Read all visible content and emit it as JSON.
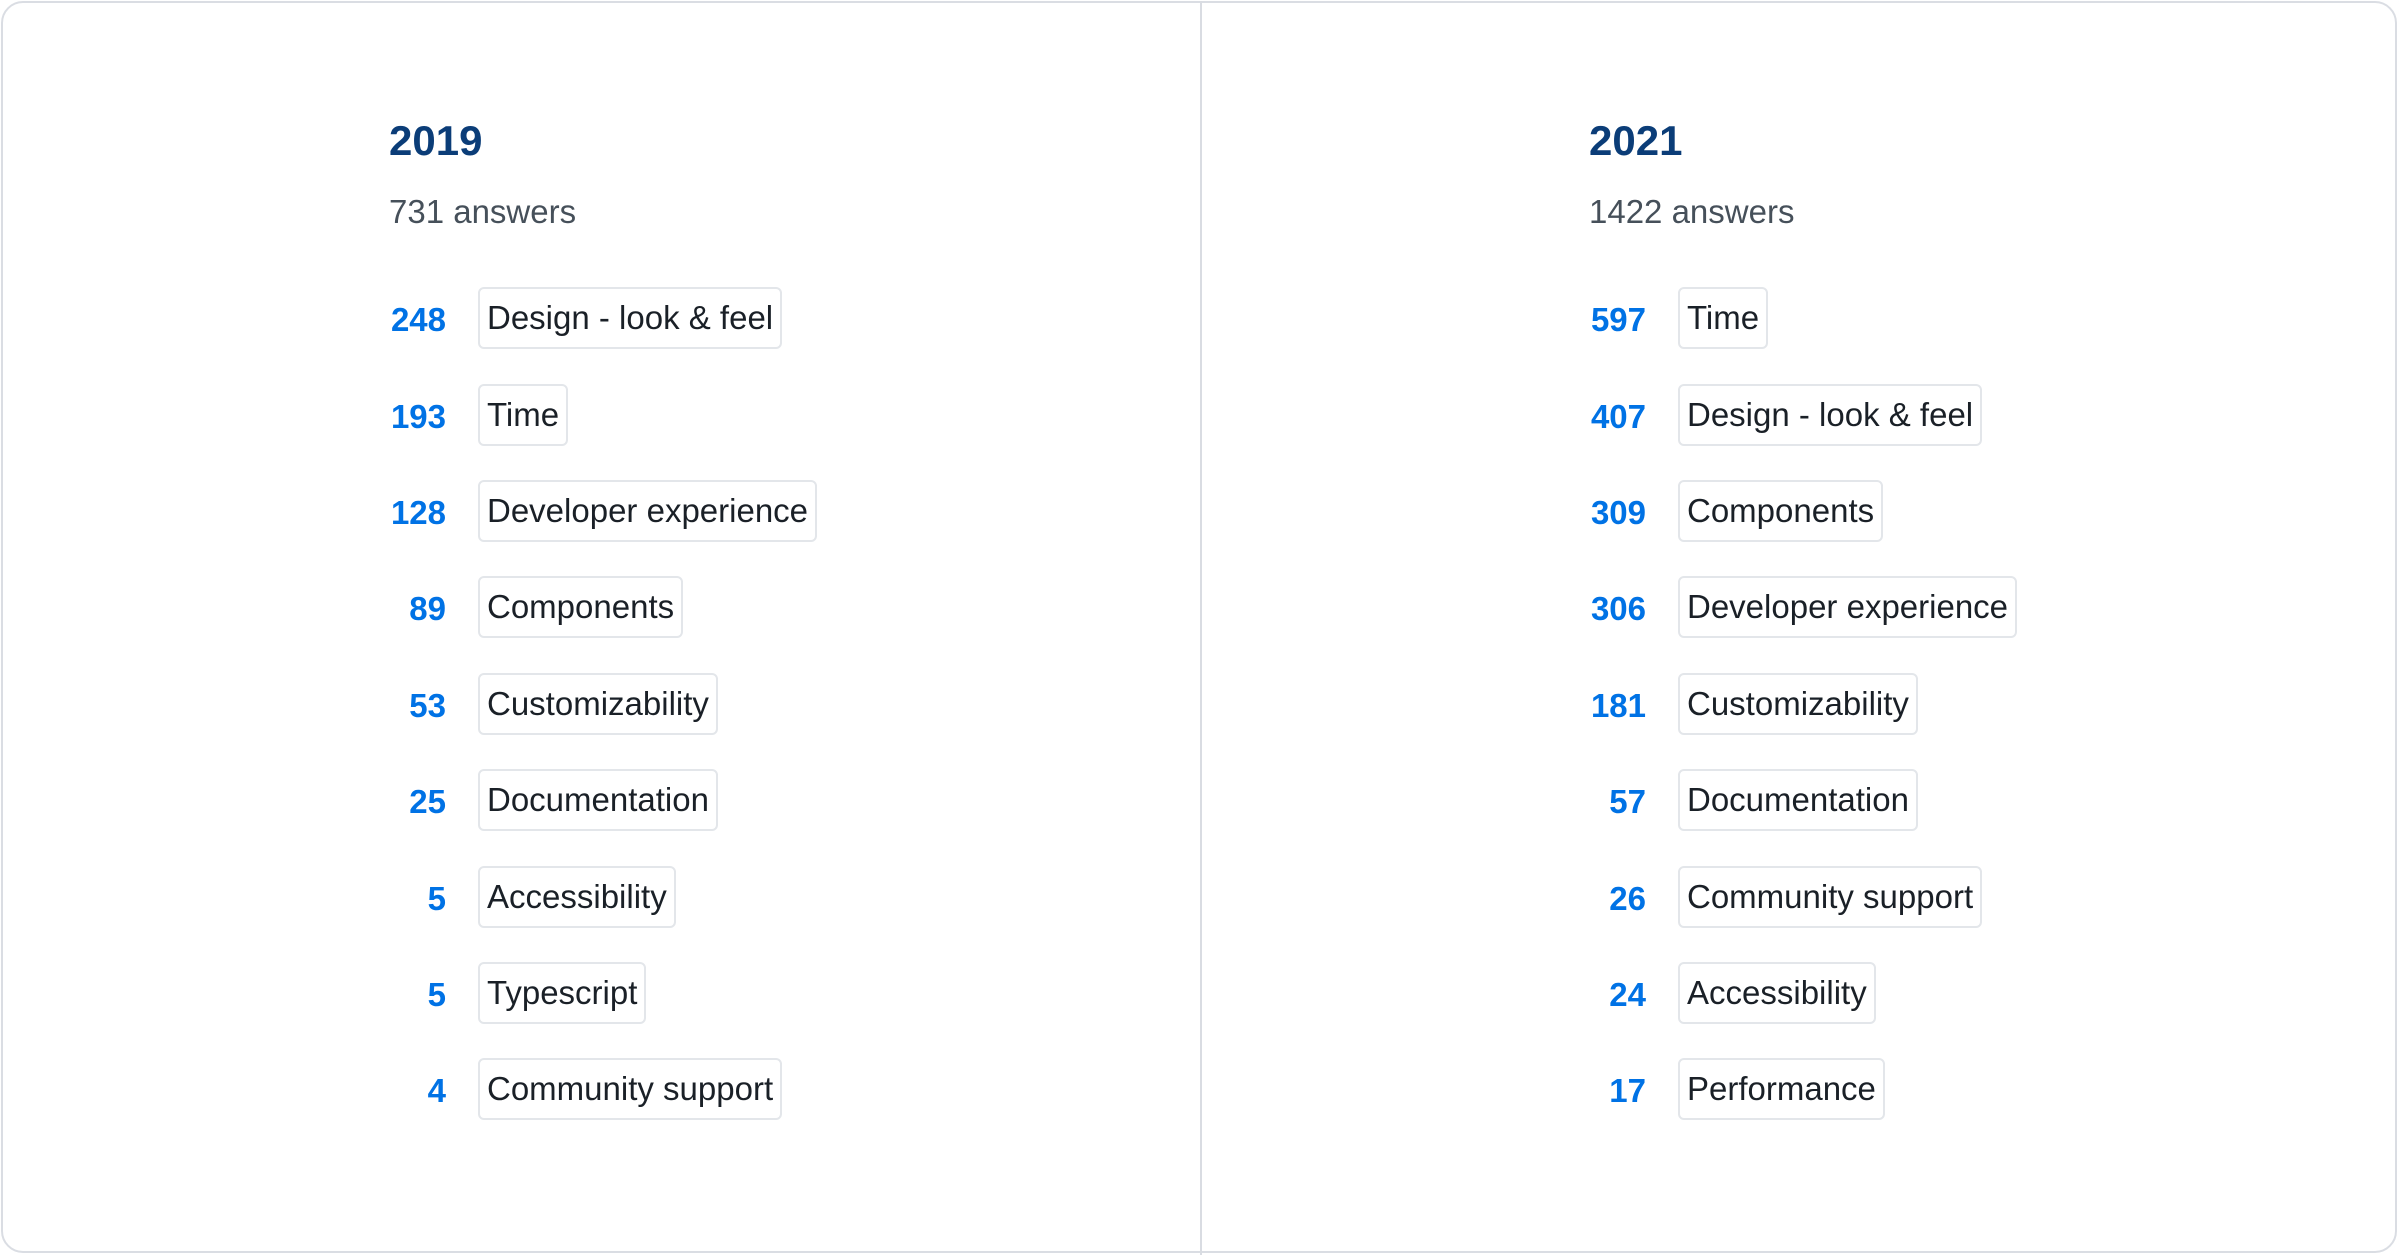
{
  "columns": [
    {
      "year": "2019",
      "answers": "731 answers",
      "items": [
        {
          "count": "248",
          "label": "Design - look & feel"
        },
        {
          "count": "193",
          "label": "Time"
        },
        {
          "count": "128",
          "label": "Developer experience"
        },
        {
          "count": "89",
          "label": "Components"
        },
        {
          "count": "53",
          "label": "Customizability"
        },
        {
          "count": "25",
          "label": "Documentation"
        },
        {
          "count": "5",
          "label": "Accessibility"
        },
        {
          "count": "5",
          "label": "Typescript"
        },
        {
          "count": "4",
          "label": "Community support"
        }
      ]
    },
    {
      "year": "2021",
      "answers": "1422 answers",
      "items": [
        {
          "count": "597",
          "label": "Time"
        },
        {
          "count": "407",
          "label": "Design - look & feel"
        },
        {
          "count": "309",
          "label": "Components"
        },
        {
          "count": "306",
          "label": "Developer experience"
        },
        {
          "count": "181",
          "label": "Customizability"
        },
        {
          "count": "57",
          "label": "Documentation"
        },
        {
          "count": "26",
          "label": "Community support"
        },
        {
          "count": "24",
          "label": "Accessibility"
        },
        {
          "count": "17",
          "label": "Performance"
        }
      ]
    }
  ],
  "colors": {
    "title": "#0b3d78",
    "count": "#0072e5",
    "subtitle": "#46505a",
    "tag_border": "#e3e6ea",
    "tag_text": "#1a2027"
  }
}
